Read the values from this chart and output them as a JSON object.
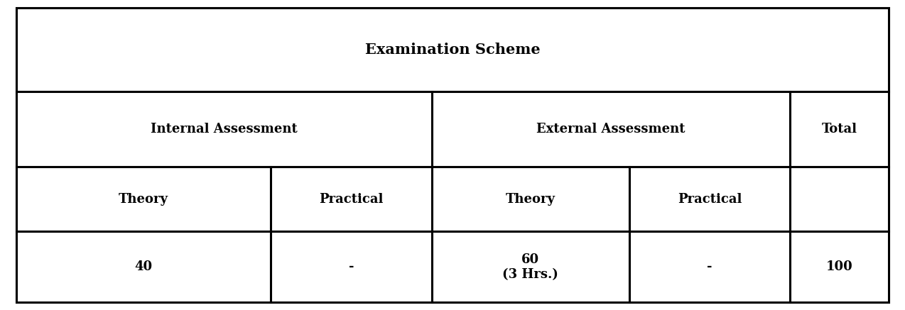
{
  "title": "Examination Scheme",
  "title_fontsize": 15,
  "header1_left": "Internal Assessment",
  "header1_mid": "External Assessment",
  "header1_right": "Total",
  "header2_col1": "Theory",
  "header2_col2": "Practical",
  "header2_col3": "Theory",
  "header2_col4": "Practical",
  "header2_col5": "",
  "data_col1": "40",
  "data_col2": "-",
  "data_col3": "60\n(3 Hrs.)",
  "data_col4": "-",
  "data_col5": "100",
  "background_color": "#ffffff",
  "border_color": "#000000",
  "text_color": "#000000",
  "cell_font_size": 13,
  "fig_width": 12.74,
  "fig_height": 4.37,
  "dpi": 100,
  "col_props": [
    0.245,
    0.155,
    0.19,
    0.155,
    0.095
  ],
  "row_props": [
    0.285,
    0.255,
    0.22,
    0.24
  ]
}
